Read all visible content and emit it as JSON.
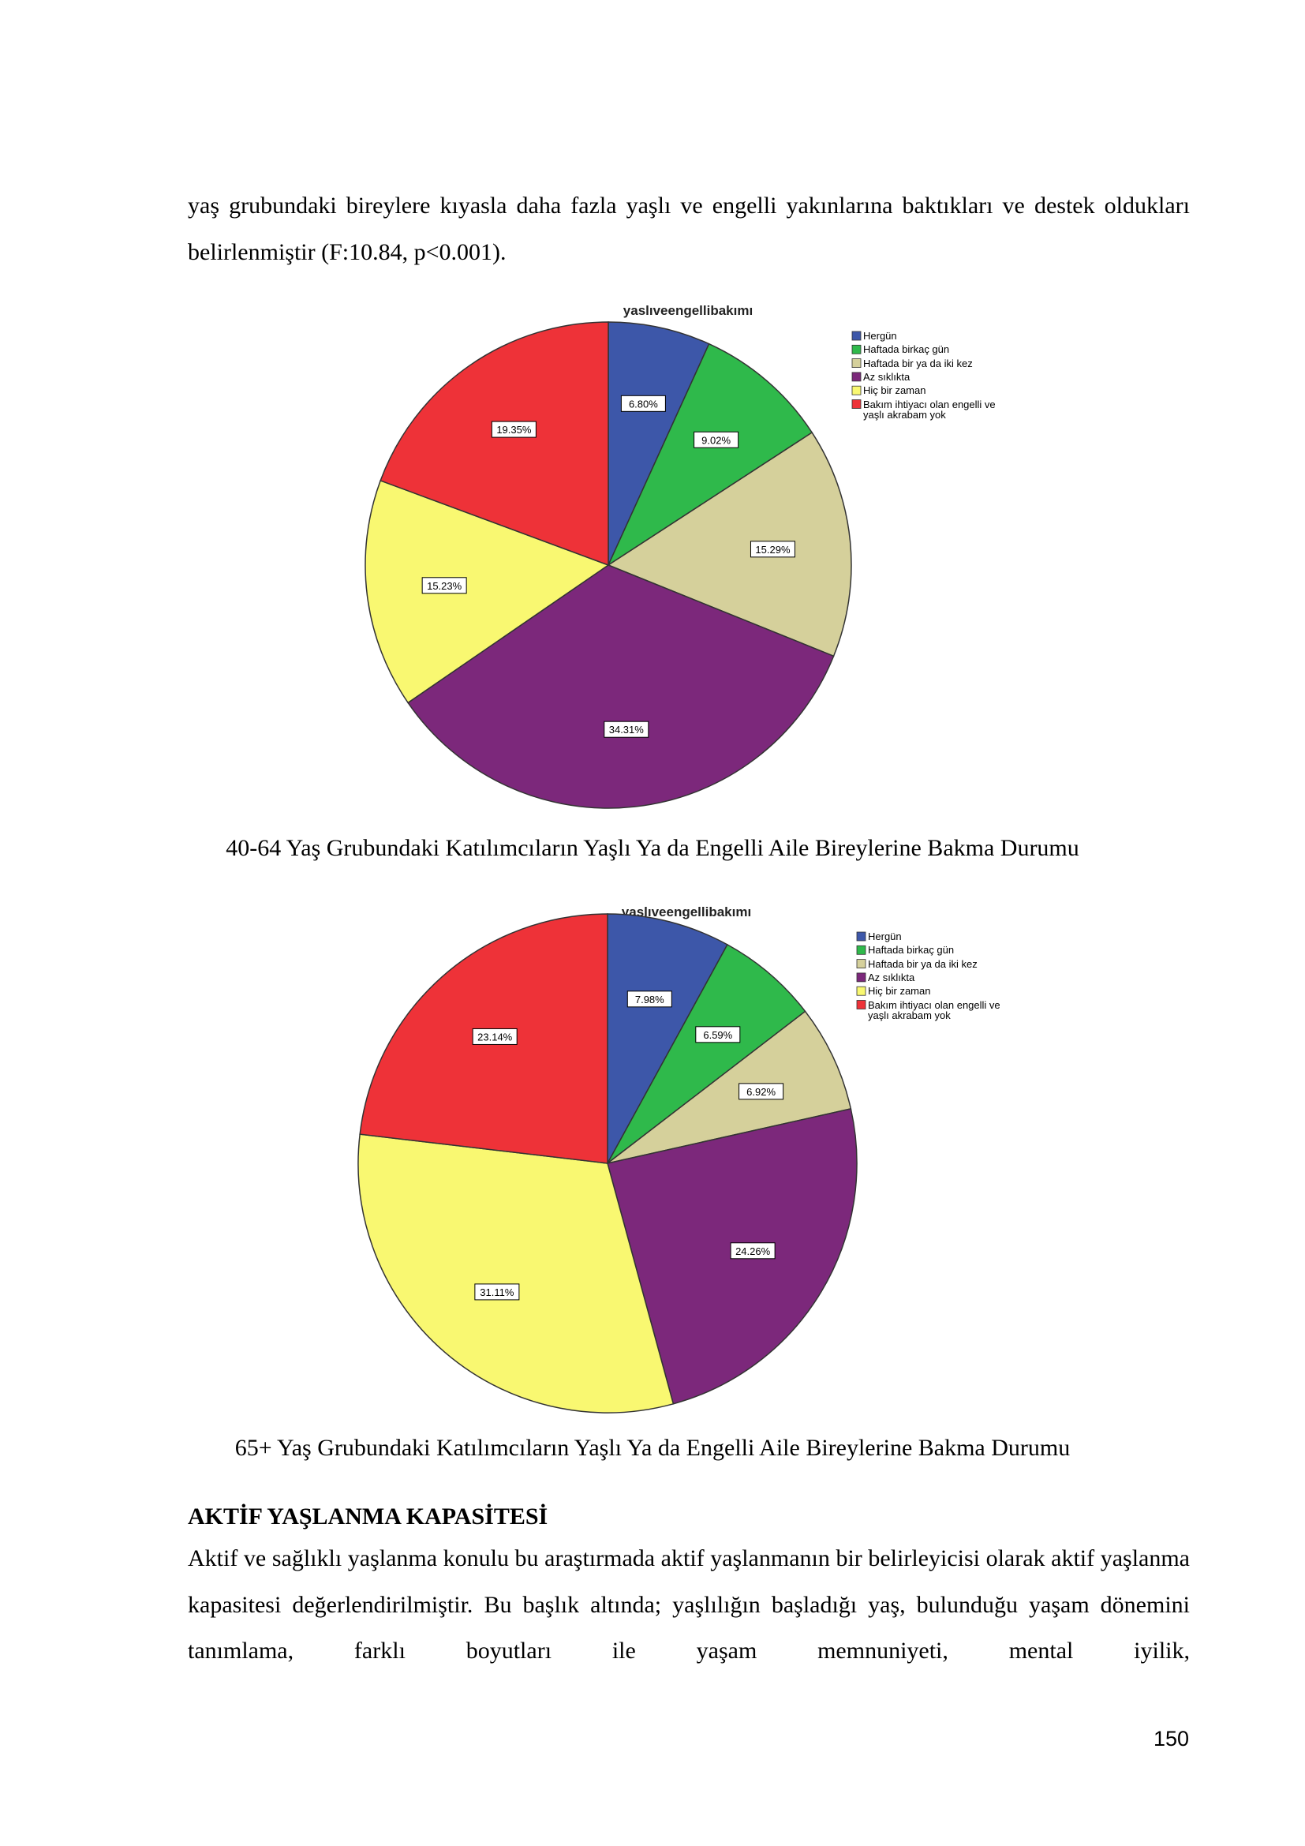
{
  "paragraph_1": "yaş grubundaki bireylere kıyasla daha fazla yaşlı ve engelli yakınlarına baktıkları ve destek oldukları belirlenmiştir (F:10.84, p<0.001).",
  "chart_data": [
    {
      "type": "pie",
      "title": "yaslıveengellibakımı",
      "categories": [
        "Hergün",
        "Haftada birkaç gün",
        "Haftada bir ya da iki kez",
        "Az sıklıkta",
        "Hiç bir zaman",
        "Bakım ihtiyacı olan engelli ve yaşlı akrabam yok"
      ],
      "values": [
        6.8,
        9.02,
        15.29,
        34.31,
        15.23,
        19.35
      ],
      "value_labels": [
        "6.80%",
        "9.02%",
        "15.29%",
        "34.31%",
        "15.23%",
        "19.35%"
      ],
      "colors": [
        "#3d57a9",
        "#2fb94b",
        "#d5d09b",
        "#7c287b",
        "#f9f871",
        "#ee3238"
      ],
      "legend": "upper right",
      "caption": "40-64 Yaş Grubundaki Katılımcıların Yaşlı Ya da Engelli Aile Bireylerine Bakma Durumu"
    },
    {
      "type": "pie",
      "title": "yaslıveengellibakımı",
      "categories": [
        "Hergün",
        "Haftada birkaç gün",
        "Haftada bir ya da iki kez",
        "Az sıklıkta",
        "Hiç bir zaman",
        "Bakım ihtiyacı olan engelli ve yaşlı akrabam yok"
      ],
      "values": [
        7.98,
        6.59,
        6.92,
        24.26,
        31.11,
        23.14
      ],
      "value_labels": [
        "7.98%",
        "6.59%",
        "6.92%",
        "24.26%",
        "31.11%",
        "23.14%"
      ],
      "colors": [
        "#3d57a9",
        "#2fb94b",
        "#d5d09b",
        "#7c287b",
        "#f9f871",
        "#ee3238"
      ],
      "legend": "upper right",
      "caption": "65+ Yaş Grubundaki Katılımcıların Yaşlı Ya da Engelli Aile Bireylerine Bakma Durumu"
    }
  ],
  "section_heading": "AKTİF YAŞLANMA KAPASİTESİ",
  "paragraph_2": "Aktif ve sağlıklı yaşlanma konulu bu araştırmada aktif yaşlanmanın bir belirleyicisi olarak aktif yaşlanma kapasitesi değerlendirilmiştir. Bu başlık altında; yaşlılığın başladığı yaş, bulunduğu yaşam dönemini tanımlama, farklı boyutları ile yaşam memnuniyeti, mental iyilik,",
  "page_number": "150"
}
